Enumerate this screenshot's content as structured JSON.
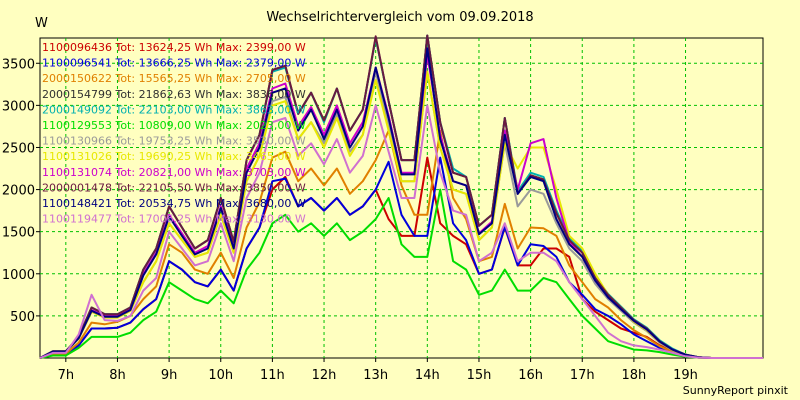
{
  "chart_data": {
    "type": "line",
    "title": "Wechselrichtervergleich vom 09.09.2018",
    "ylabel": "W",
    "xlabel": "",
    "ylim": [
      0,
      3800
    ],
    "xlim": [
      6.5,
      20.5
    ],
    "y_ticks": [
      500,
      1000,
      1500,
      2000,
      2500,
      3000,
      3500
    ],
    "x_ticks": [
      {
        "x": 7,
        "label": "7h"
      },
      {
        "x": 8,
        "label": "8h"
      },
      {
        "x": 9,
        "label": "9h"
      },
      {
        "x": 10,
        "label": "10h"
      },
      {
        "x": 11,
        "label": "11h"
      },
      {
        "x": 12,
        "label": "12h"
      },
      {
        "x": 13,
        "label": "13h"
      },
      {
        "x": 14,
        "label": "14h"
      },
      {
        "x": 15,
        "label": "15h"
      },
      {
        "x": 16,
        "label": "16h"
      },
      {
        "x": 17,
        "label": "17h"
      },
      {
        "x": 18,
        "label": "18h"
      },
      {
        "x": 19,
        "label": "19h"
      }
    ],
    "grid": true,
    "legend_position": "top-left",
    "x": [
      6.5,
      6.75,
      7.0,
      7.25,
      7.5,
      7.75,
      8.0,
      8.25,
      8.5,
      8.75,
      9.0,
      9.25,
      9.5,
      9.75,
      10.0,
      10.25,
      10.5,
      10.75,
      11.0,
      11.25,
      11.5,
      11.75,
      12.0,
      12.25,
      12.5,
      12.75,
      13.0,
      13.25,
      13.5,
      13.75,
      14.0,
      14.25,
      14.5,
      14.75,
      15.0,
      15.25,
      15.5,
      15.75,
      16.0,
      16.25,
      16.5,
      16.75,
      17.0,
      17.25,
      17.5,
      17.75,
      18.0,
      18.25,
      18.5,
      18.75,
      19.0,
      19.25,
      19.5,
      19.75,
      20.0,
      20.25,
      20.5
    ],
    "series": [
      {
        "name": "1100096436 Tot: 13624,25 Wh Max: 2399,00 W",
        "color": "#cc0000",
        "values": [
          0,
          40,
          40,
          150,
          350,
          350,
          360,
          420,
          580,
          700,
          1150,
          1050,
          900,
          850,
          1050,
          800,
          1300,
          1550,
          2000,
          2150,
          1800,
          1900,
          1750,
          1900,
          1700,
          1800,
          2000,
          1650,
          1450,
          1450,
          2380,
          1600,
          1450,
          1350,
          1000,
          1050,
          1550,
          1100,
          1100,
          1300,
          1300,
          1200,
          700,
          550,
          450,
          350,
          300,
          250,
          150,
          80,
          30,
          10,
          0,
          0,
          0,
          0,
          0
        ]
      },
      {
        "name": "1100096541 Tot: 13666,25 Wh Max: 2379,00 W",
        "color": "#0000dd",
        "values": [
          0,
          40,
          40,
          150,
          350,
          350,
          360,
          420,
          580,
          700,
          1150,
          1050,
          900,
          850,
          1050,
          800,
          1300,
          1550,
          2100,
          2130,
          1800,
          1900,
          1750,
          1900,
          1700,
          1800,
          2000,
          2330,
          1700,
          1450,
          1450,
          2380,
          1600,
          1400,
          1000,
          1050,
          1560,
          1100,
          1350,
          1330,
          1200,
          900,
          750,
          580,
          500,
          400,
          280,
          200,
          120,
          60,
          20,
          5,
          0,
          0,
          0,
          0,
          0
        ]
      },
      {
        "name": "2000150622 Tot: 15565,25 Wh Max: 2705,00 W",
        "color": "#e08000",
        "values": [
          0,
          50,
          50,
          180,
          420,
          400,
          430,
          500,
          700,
          850,
          1350,
          1250,
          1050,
          1000,
          1250,
          950,
          1550,
          1850,
          2380,
          2450,
          2100,
          2250,
          2050,
          2250,
          1950,
          2100,
          2350,
          2700,
          2050,
          1700,
          1700,
          2700,
          1900,
          1650,
          1150,
          1200,
          1830,
          1300,
          1550,
          1540,
          1450,
          1100,
          900,
          700,
          600,
          450,
          330,
          240,
          140,
          70,
          25,
          5,
          0,
          0,
          0,
          0,
          0
        ]
      },
      {
        "name": "2000154799 Tot: 21862,63 Wh Max: 3836,00 W",
        "color": "#303030",
        "values": [
          0,
          80,
          80,
          250,
          600,
          520,
          520,
          600,
          1050,
          1300,
          1800,
          1550,
          1300,
          1400,
          1900,
          1380,
          2350,
          2650,
          3420,
          3470,
          2900,
          3150,
          2820,
          3200,
          2700,
          2950,
          3800,
          3050,
          2350,
          2350,
          3830,
          2800,
          2200,
          2150,
          1570,
          1700,
          2850,
          1950,
          2170,
          2120,
          1720,
          1400,
          1250,
          950,
          750,
          600,
          450,
          350,
          200,
          100,
          40,
          10,
          0,
          0,
          0,
          0,
          0
        ]
      },
      {
        "name": "2000149092 Tot: 22103,00 Wh Max: 3863,00 W",
        "color": "#00b0b0",
        "values": [
          0,
          80,
          80,
          250,
          600,
          520,
          520,
          600,
          1050,
          1300,
          1800,
          1550,
          1300,
          1400,
          1900,
          1380,
          2350,
          2650,
          3400,
          3450,
          2900,
          3150,
          2800,
          3200,
          2700,
          2950,
          3800,
          3050,
          2350,
          2350,
          3830,
          2800,
          2250,
          2150,
          1570,
          1700,
          2850,
          1980,
          2200,
          2150,
          1750,
          1420,
          1270,
          970,
          760,
          610,
          460,
          360,
          210,
          110,
          40,
          10,
          0,
          0,
          0,
          0,
          0
        ]
      },
      {
        "name": "1100129553 Tot: 10809,00 Wh Max: 2023,00 W",
        "color": "#00dd00",
        "values": [
          0,
          30,
          30,
          120,
          250,
          250,
          250,
          300,
          450,
          550,
          900,
          800,
          700,
          650,
          800,
          650,
          1050,
          1250,
          1600,
          1700,
          1500,
          1600,
          1450,
          1600,
          1400,
          1500,
          1650,
          1900,
          1350,
          1200,
          1200,
          2000,
          1150,
          1050,
          750,
          800,
          1050,
          800,
          800,
          950,
          900,
          700,
          500,
          350,
          200,
          150,
          100,
          90,
          70,
          40,
          15,
          5,
          0,
          0,
          0,
          0,
          0
        ]
      },
      {
        "name": "1100130966 Tot: 19753,25 Wh Max: 3530,00 W",
        "color": "#9a9a9a",
        "values": [
          0,
          70,
          70,
          230,
          550,
          480,
          480,
          560,
          900,
          1150,
          1600,
          1400,
          1200,
          1250,
          1700,
          1250,
          2100,
          2400,
          3050,
          3100,
          2600,
          2800,
          2550,
          2900,
          2450,
          2650,
          3400,
          2750,
          2100,
          2100,
          3400,
          2500,
          2000,
          1950,
          1400,
          1550,
          2550,
          1800,
          2000,
          1950,
          1600,
          1300,
          1150,
          880,
          700,
          560,
          420,
          320,
          180,
          90,
          35,
          8,
          0,
          0,
          0,
          0,
          0
        ]
      },
      {
        "name": "1100131026 Tot: 19690,25 Wh Max: 3465,00 W",
        "color": "#e8e800",
        "values": [
          0,
          70,
          70,
          230,
          550,
          480,
          480,
          560,
          900,
          1150,
          1600,
          1400,
          1200,
          1250,
          1700,
          1250,
          2100,
          2400,
          3000,
          3050,
          2600,
          2800,
          2500,
          2850,
          2400,
          2650,
          3300,
          2700,
          2100,
          2100,
          3400,
          2500,
          2000,
          1950,
          1400,
          1550,
          2550,
          2250,
          2500,
          2500,
          2000,
          1450,
          1300,
          1000,
          750,
          600,
          430,
          330,
          190,
          95,
          35,
          8,
          0,
          0,
          0,
          0,
          0
        ]
      },
      {
        "name": "1100131074 Tot: 20821,00 Wh Max: 3703,00 W",
        "color": "#cc00cc",
        "values": [
          0,
          75,
          75,
          240,
          570,
          500,
          500,
          580,
          1000,
          1250,
          1700,
          1480,
          1250,
          1330,
          1800,
          1320,
          2250,
          2550,
          3200,
          3260,
          2750,
          2980,
          2650,
          3000,
          2550,
          2800,
          3450,
          2880,
          2200,
          2200,
          3600,
          2650,
          2100,
          2050,
          1480,
          1620,
          2700,
          2000,
          2550,
          2600,
          1900,
          1380,
          1200,
          920,
          720,
          580,
          440,
          340,
          195,
          100,
          38,
          9,
          0,
          0,
          0,
          0,
          0
        ]
      },
      {
        "name": "2000001478 Tot: 22105,50 Wh Max: 3850,00 W",
        "color": "#6a1a40",
        "values": [
          0,
          80,
          80,
          250,
          600,
          520,
          520,
          600,
          1050,
          1300,
          1800,
          1550,
          1300,
          1400,
          1900,
          1380,
          2350,
          2650,
          3420,
          3470,
          2900,
          3150,
          2820,
          3200,
          2700,
          2950,
          3820,
          3050,
          2350,
          2350,
          3830,
          2800,
          2200,
          2150,
          1570,
          1700,
          2850,
          1950,
          2170,
          2120,
          1720,
          1400,
          1250,
          950,
          750,
          600,
          450,
          350,
          200,
          100,
          40,
          10,
          0,
          0,
          0,
          0,
          0
        ]
      },
      {
        "name": "1100148421 Tot: 20534,75 Wh Max: 3680,00 W",
        "color": "#000080",
        "values": [
          0,
          75,
          75,
          235,
          560,
          490,
          490,
          570,
          980,
          1230,
          1680,
          1450,
          1230,
          1300,
          1780,
          1300,
          2200,
          2500,
          3150,
          3200,
          2700,
          2950,
          2600,
          2950,
          2500,
          2750,
          3450,
          2850,
          2180,
          2180,
          3680,
          2600,
          2100,
          2050,
          1470,
          1600,
          2650,
          1950,
          2150,
          2100,
          1650,
          1350,
          1200,
          920,
          720,
          580,
          440,
          340,
          195,
          100,
          38,
          9,
          0,
          0,
          0,
          0,
          0
        ]
      },
      {
        "name": "1100119477 Tot: 17006,25 Wh Max: 3130,00 W",
        "color": "#d070d0",
        "values": [
          0,
          60,
          60,
          280,
          750,
          450,
          440,
          500,
          800,
          950,
          1500,
          1300,
          1100,
          1150,
          1600,
          1150,
          1900,
          2200,
          2800,
          2850,
          2400,
          2550,
          2300,
          2600,
          2200,
          2400,
          3000,
          2450,
          1900,
          1900,
          3000,
          2200,
          1750,
          1700,
          1150,
          1250,
          1600,
          1150,
          1250,
          1250,
          1150,
          900,
          700,
          500,
          300,
          200,
          150,
          130,
          100,
          60,
          20,
          5,
          0,
          0,
          0,
          0,
          0
        ]
      }
    ]
  },
  "footer": "SunnyReport pinxit"
}
